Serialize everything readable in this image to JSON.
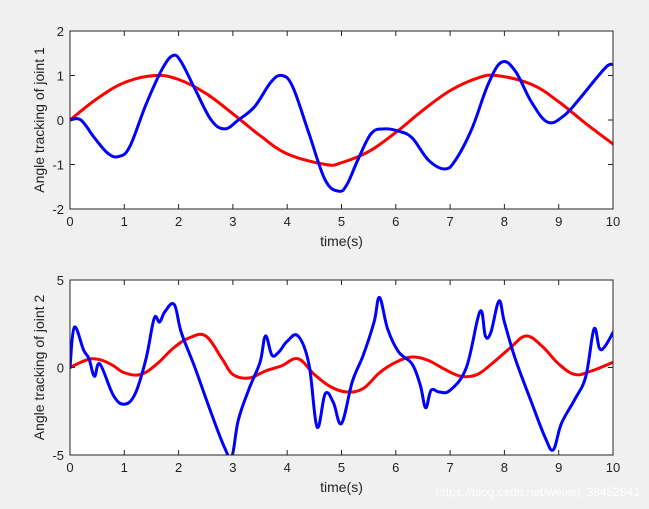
{
  "watermark": "https://blog.csdn.net/weixin_38452841",
  "colors": {
    "reference": "#ff0000",
    "actual": "#0000ff",
    "background": "#f0f0f0",
    "axes": "#ffffff"
  },
  "chart_data": [
    {
      "type": "line",
      "xlabel": "time(s)",
      "ylabel": "Angle tracking of joint 1",
      "xlim": [
        0,
        10
      ],
      "ylim": [
        -2,
        2
      ],
      "xticks": [
        0,
        1,
        2,
        3,
        4,
        5,
        6,
        7,
        8,
        9,
        10
      ],
      "yticks": [
        -2,
        -1,
        0,
        1,
        2
      ],
      "xtick_labels": [
        "0",
        "1",
        "2",
        "3",
        "4",
        "5",
        "6",
        "7",
        "8",
        "9",
        "10"
      ],
      "ytick_labels": [
        "-2",
        "-1",
        "0",
        "1",
        "2"
      ],
      "grid": false,
      "series": [
        {
          "color": "#ff0000",
          "x": [
            0,
            0.5,
            1,
            1.57,
            2,
            2.5,
            3,
            3.5,
            4,
            4.71,
            5,
            5.5,
            6,
            6.5,
            7,
            7.5,
            7.85,
            8.5,
            9,
            9.5,
            10
          ],
          "y": [
            0,
            0.48,
            0.84,
            1.0,
            0.91,
            0.6,
            0.14,
            -0.35,
            -0.76,
            -1.0,
            -0.96,
            -0.71,
            -0.28,
            0.22,
            0.66,
            0.94,
            1.0,
            0.8,
            0.41,
            -0.08,
            -0.54
          ]
        },
        {
          "color": "#0000ff",
          "x": [
            0,
            0.2,
            0.45,
            0.7,
            0.9,
            1.1,
            1.4,
            1.7,
            1.9,
            2.05,
            2.3,
            2.6,
            2.85,
            3.1,
            3.4,
            3.7,
            3.9,
            4.1,
            4.4,
            4.7,
            4.95,
            5.1,
            5.3,
            5.55,
            5.8,
            6.05,
            6.3,
            6.6,
            6.9,
            7.1,
            7.4,
            7.7,
            7.95,
            8.2,
            8.5,
            8.8,
            9.1,
            9.4,
            9.7,
            9.9,
            10
          ],
          "y": [
            0,
            0.0,
            -0.4,
            -0.75,
            -0.82,
            -0.6,
            0.35,
            1.15,
            1.45,
            1.3,
            0.7,
            0.0,
            -0.2,
            0.0,
            0.3,
            0.85,
            1.0,
            0.75,
            -0.3,
            -1.35,
            -1.6,
            -1.45,
            -0.9,
            -0.3,
            -0.2,
            -0.25,
            -0.4,
            -0.9,
            -1.1,
            -0.9,
            -0.2,
            0.8,
            1.3,
            1.1,
            0.4,
            -0.05,
            0.1,
            0.5,
            0.95,
            1.22,
            1.25
          ]
        }
      ]
    },
    {
      "type": "line",
      "xlabel": "time(s)",
      "ylabel": "Angle tracking of joint 2",
      "xlim": [
        0,
        10
      ],
      "ylim": [
        -5,
        5
      ],
      "xticks": [
        0,
        1,
        2,
        3,
        4,
        5,
        6,
        7,
        8,
        9,
        10
      ],
      "yticks": [
        -5,
        0,
        5
      ],
      "xtick_labels": [
        "0",
        "1",
        "2",
        "3",
        "4",
        "5",
        "6",
        "7",
        "8",
        "9",
        "10"
      ],
      "ytick_labels": [
        "-5",
        "0",
        "5"
      ],
      "grid": false,
      "series": [
        {
          "color": "#ff0000",
          "x": [
            0,
            0.2,
            0.4,
            0.6,
            0.8,
            1.0,
            1.3,
            1.6,
            1.9,
            2.2,
            2.5,
            2.8,
            3.0,
            3.3,
            3.6,
            3.9,
            4.2,
            4.5,
            4.8,
            5.1,
            5.4,
            5.7,
            6.0,
            6.3,
            6.6,
            6.9,
            7.2,
            7.5,
            7.8,
            8.1,
            8.4,
            8.7,
            9.0,
            9.3,
            9.6,
            10
          ],
          "y": [
            0,
            0.3,
            0.5,
            0.4,
            0.1,
            -0.3,
            -0.4,
            0.2,
            1.1,
            1.7,
            1.8,
            0.5,
            -0.4,
            -0.6,
            -0.2,
            0.1,
            0.5,
            -0.4,
            -1.1,
            -1.4,
            -1.2,
            -0.3,
            0.3,
            0.6,
            0.4,
            -0.1,
            -0.5,
            -0.4,
            0.3,
            1.1,
            1.8,
            1.2,
            0.2,
            -0.4,
            -0.2,
            0.3
          ]
        },
        {
          "color": "#0000ff",
          "x": [
            0,
            0.08,
            0.25,
            0.35,
            0.45,
            0.55,
            0.8,
            1.0,
            1.2,
            1.4,
            1.55,
            1.65,
            1.75,
            1.92,
            2.05,
            2.3,
            2.6,
            2.85,
            2.98,
            3.1,
            3.3,
            3.5,
            3.6,
            3.72,
            3.85,
            4.0,
            4.2,
            4.4,
            4.55,
            4.7,
            4.85,
            5.0,
            5.2,
            5.4,
            5.6,
            5.7,
            5.85,
            6.05,
            6.3,
            6.45,
            6.55,
            6.65,
            6.8,
            7.0,
            7.3,
            7.55,
            7.65,
            7.75,
            7.9,
            8.0,
            8.2,
            8.5,
            8.75,
            8.9,
            9.05,
            9.3,
            9.5,
            9.65,
            9.75,
            9.85,
            10
          ],
          "y": [
            0.0,
            2.3,
            1.0,
            0.5,
            -0.5,
            0.2,
            -1.6,
            -2.1,
            -1.5,
            0.5,
            2.8,
            2.6,
            3.2,
            3.6,
            2.0,
            0.0,
            -2.6,
            -4.6,
            -5.1,
            -3.0,
            -1.2,
            0.3,
            1.8,
            0.7,
            0.9,
            1.5,
            1.8,
            0.2,
            -3.4,
            -1.5,
            -2.0,
            -3.2,
            -0.8,
            0.7,
            2.6,
            4.0,
            2.2,
            0.9,
            0.2,
            -1.0,
            -2.3,
            -1.3,
            -1.4,
            -1.3,
            0.0,
            3.2,
            1.8,
            2.0,
            3.8,
            2.6,
            0.5,
            -2.0,
            -4.0,
            -4.7,
            -3.2,
            -1.8,
            -0.5,
            2.2,
            1.1,
            1.2,
            2.0
          ]
        }
      ]
    }
  ]
}
